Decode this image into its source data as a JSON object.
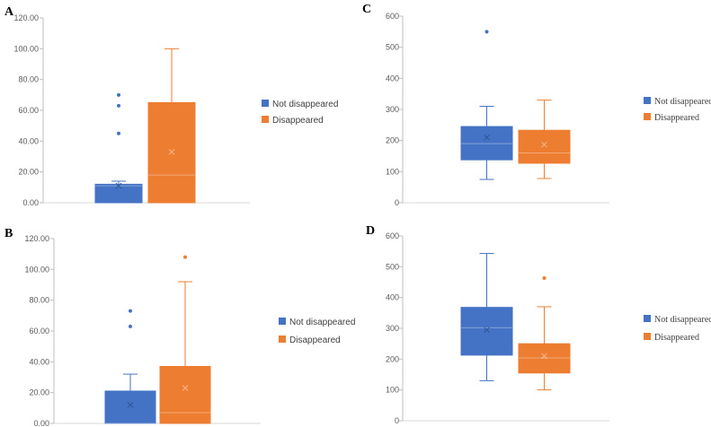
{
  "colors": {
    "not_disappeared": "#4472C4",
    "disappeared": "#ED7D31"
  },
  "chart_data": [
    {
      "type": "box",
      "panel": "A",
      "ylim": [
        0,
        120
      ],
      "yticks": [
        "0.00",
        "20.00",
        "40.00",
        "60.00",
        "80.00",
        "100.00",
        "120.00"
      ],
      "legend": [
        "Not disappeared",
        "Disappeared"
      ],
      "series": [
        {
          "name": "Not disappeared",
          "min": 0,
          "q1": 0,
          "median": 11,
          "q3": 12,
          "max": 14,
          "mean": 11,
          "outliers": [
            45,
            63,
            70
          ]
        },
        {
          "name": "Disappeared",
          "min": 0,
          "q1": 0,
          "median": 18,
          "q3": 65,
          "max": 100,
          "mean": 33,
          "outliers": []
        }
      ]
    },
    {
      "type": "box",
      "panel": "C",
      "ylim": [
        0,
        600
      ],
      "yticks": [
        "0",
        "100",
        "200",
        "300",
        "400",
        "500",
        "600"
      ],
      "legend": [
        "Not disappeared",
        "Disappeared"
      ],
      "series": [
        {
          "name": "Not disappeared",
          "min": 75,
          "q1": 138,
          "median": 190,
          "q3": 245,
          "max": 310,
          "mean": 210,
          "outliers": [
            550
          ]
        },
        {
          "name": "Disappeared",
          "min": 78,
          "q1": 127,
          "median": 160,
          "q3": 233,
          "max": 330,
          "mean": 187,
          "outliers": []
        }
      ]
    },
    {
      "type": "box",
      "panel": "B",
      "ylim": [
        0,
        120
      ],
      "yticks": [
        "0.00",
        "20.00",
        "40.00",
        "60.00",
        "80.00",
        "100.00",
        "120.00"
      ],
      "legend": [
        "Not disappeared",
        "Disappeared"
      ],
      "series": [
        {
          "name": "Not disappeared",
          "min": 0,
          "q1": 0,
          "median": 0,
          "q3": 21,
          "max": 32,
          "mean": 12,
          "outliers": [
            63,
            73
          ]
        },
        {
          "name": "Disappeared",
          "min": 0,
          "q1": 0,
          "median": 7,
          "q3": 37,
          "max": 92,
          "mean": 23,
          "outliers": [
            108
          ]
        }
      ]
    },
    {
      "type": "box",
      "panel": "D",
      "ylim": [
        0,
        600
      ],
      "yticks": [
        "0",
        "100",
        "200",
        "300",
        "400",
        "500",
        "600"
      ],
      "legend": [
        "Not disappeared",
        "Disappeared"
      ],
      "series": [
        {
          "name": "Not disappeared",
          "min": 130,
          "q1": 213,
          "median": 302,
          "q3": 368,
          "max": 543,
          "mean": 295,
          "outliers": []
        },
        {
          "name": "Disappeared",
          "min": 100,
          "q1": 155,
          "median": 204,
          "q3": 250,
          "max": 370,
          "mean": 210,
          "outliers": [
            463
          ]
        }
      ]
    }
  ]
}
